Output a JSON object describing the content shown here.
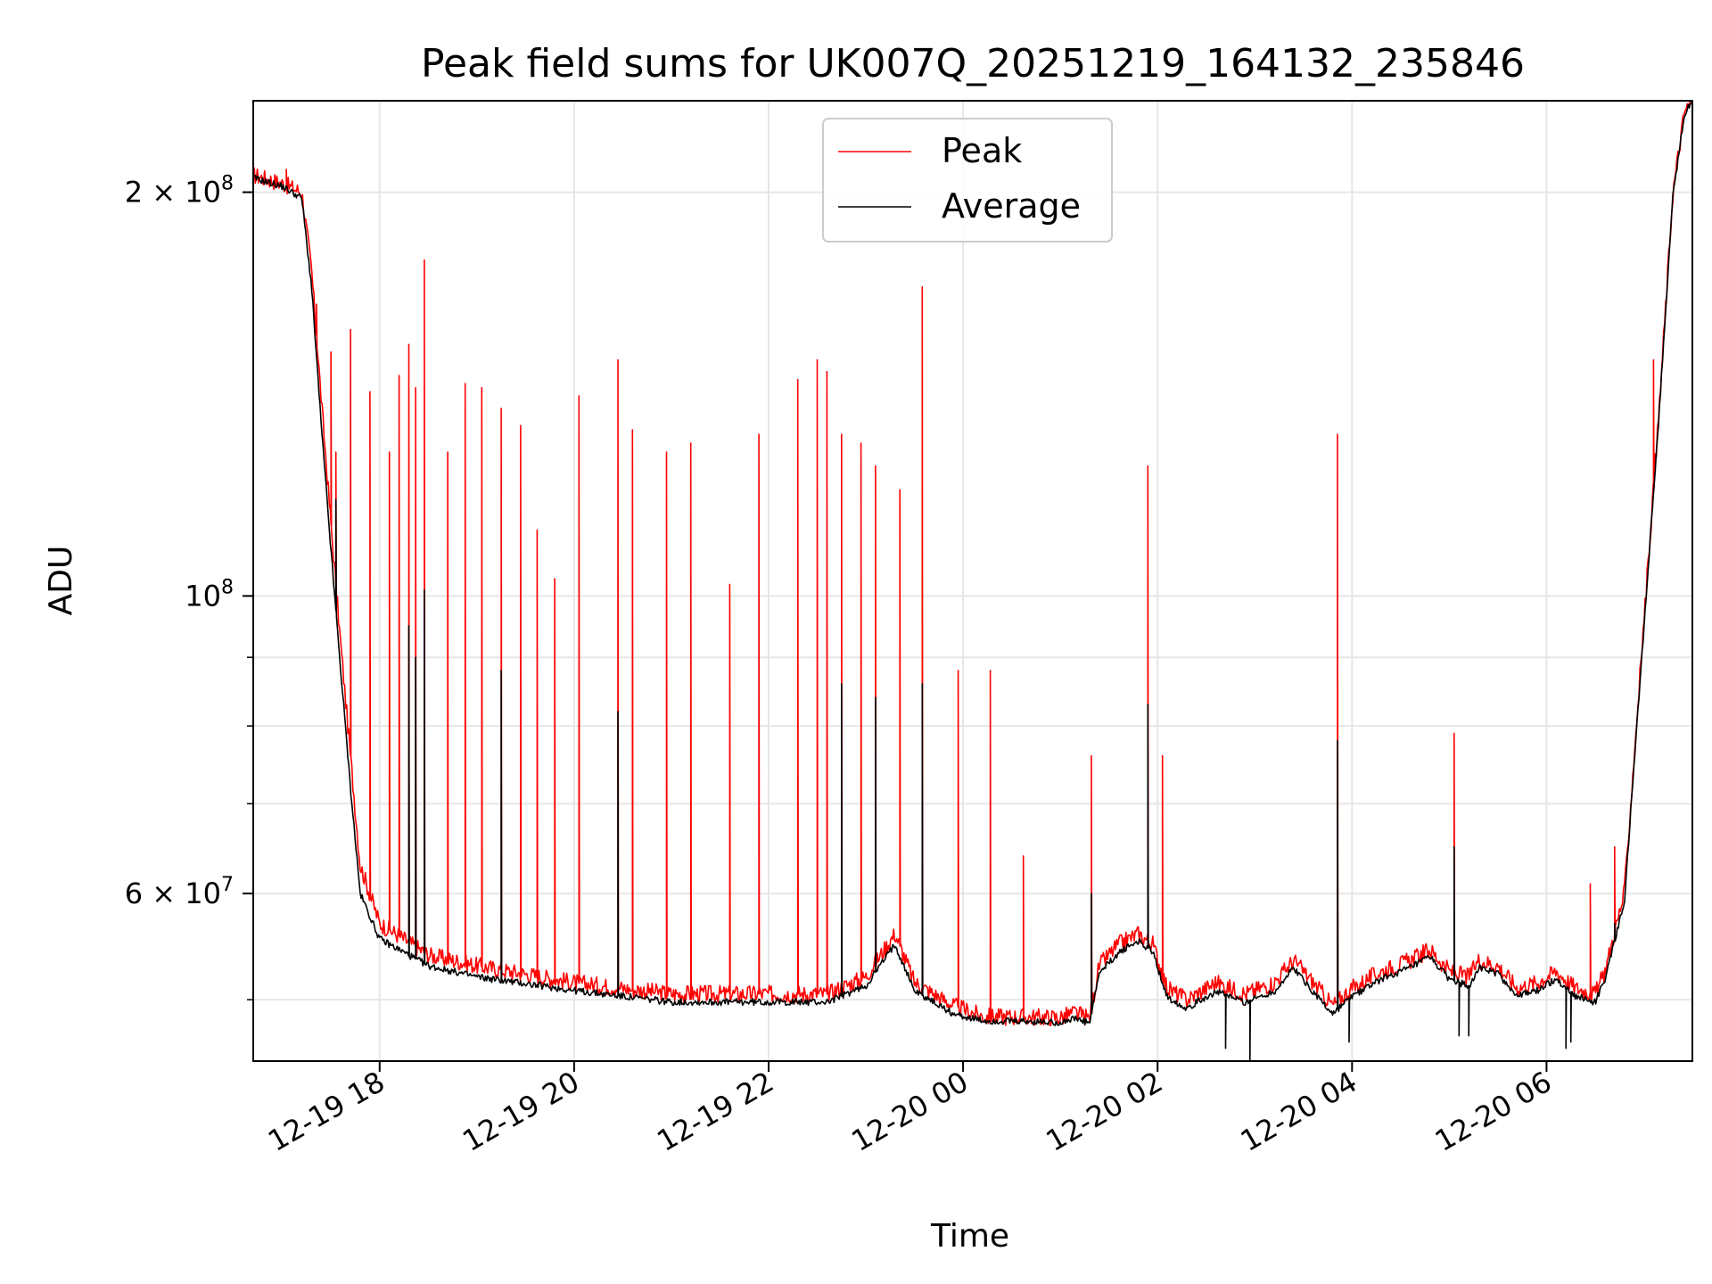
{
  "chart_data": {
    "type": "line",
    "title": "Peak field sums for UK007Q_20251219_164132_235846",
    "xlabel": "Time",
    "ylabel": "ADU",
    "yscale": "log",
    "xlim_hours": [
      16.7,
      31.5
    ],
    "ylim": [
      45000000,
      234000000
    ],
    "grid": true,
    "legend": {
      "placement": "top-center",
      "entries": [
        "Peak",
        "Average"
      ]
    },
    "x_ticks": [
      {
        "hour": 18,
        "label": "12-19 18"
      },
      {
        "hour": 20,
        "label": "12-19 20"
      },
      {
        "hour": 22,
        "label": "12-19 22"
      },
      {
        "hour": 24,
        "label": "12-20 00"
      },
      {
        "hour": 26,
        "label": "12-20 02"
      },
      {
        "hour": 28,
        "label": "12-20 04"
      },
      {
        "hour": 30,
        "label": "12-20 06"
      }
    ],
    "y_major_ticks": [
      {
        "value": 200000000,
        "mant": "2",
        "base": "× 10",
        "exp": "8"
      },
      {
        "value": 100000000,
        "mant": "",
        "base": "10",
        "exp": "8"
      },
      {
        "value": 60000000,
        "mant": "6",
        "base": "× 10",
        "exp": "7"
      }
    ],
    "y_minor_ticks": [
      50000000,
      70000000,
      80000000,
      90000000
    ],
    "series": [
      {
        "name": "Peak",
        "color": "#ff0000",
        "baseline": [
          [
            16.7,
            206000000
          ],
          [
            17.0,
            203000000
          ],
          [
            17.2,
            200000000
          ],
          [
            17.3,
            175000000
          ],
          [
            17.4,
            140000000
          ],
          [
            17.5,
            113000000
          ],
          [
            17.6,
            92000000
          ],
          [
            17.7,
            76000000
          ],
          [
            17.8,
            63000000
          ],
          [
            18.0,
            57000000
          ],
          [
            18.5,
            54000000
          ],
          [
            19.0,
            53000000
          ],
          [
            20.0,
            51500000
          ],
          [
            21.0,
            50500000
          ],
          [
            22.0,
            50500000
          ],
          [
            22.6,
            50500000
          ],
          [
            23.0,
            52000000
          ],
          [
            23.3,
            56000000
          ],
          [
            23.5,
            51500000
          ],
          [
            23.9,
            49500000
          ],
          [
            24.2,
            48600000
          ],
          [
            25.0,
            48500000
          ],
          [
            25.15,
            48900000
          ],
          [
            25.3,
            48400000
          ],
          [
            25.4,
            53000000
          ],
          [
            25.6,
            55000000
          ],
          [
            25.8,
            56000000
          ],
          [
            25.95,
            55000000
          ],
          [
            26.1,
            51000000
          ],
          [
            26.3,
            50000000
          ],
          [
            26.6,
            51500000
          ],
          [
            26.9,
            50500000
          ],
          [
            27.2,
            51500000
          ],
          [
            27.4,
            53500000
          ],
          [
            27.6,
            51500000
          ],
          [
            27.8,
            49500000
          ],
          [
            28.0,
            51000000
          ],
          [
            28.3,
            52500000
          ],
          [
            28.6,
            53500000
          ],
          [
            28.8,
            54500000
          ],
          [
            29.0,
            52500000
          ],
          [
            29.2,
            52000000
          ],
          [
            29.3,
            53500000
          ],
          [
            29.5,
            53000000
          ],
          [
            29.7,
            51000000
          ],
          [
            29.9,
            51500000
          ],
          [
            30.1,
            52500000
          ],
          [
            30.3,
            51000000
          ],
          [
            30.5,
            50500000
          ],
          [
            30.6,
            52500000
          ],
          [
            30.8,
            60000000
          ],
          [
            30.95,
            85000000
          ],
          [
            31.15,
            135000000
          ],
          [
            31.3,
            200000000
          ],
          [
            31.42,
            230000000
          ],
          [
            31.5,
            234000000
          ]
        ],
        "spikes": [
          [
            17.04,
            208000000
          ],
          [
            17.35,
            165000000
          ],
          [
            17.5,
            152000000
          ],
          [
            17.55,
            128000000
          ],
          [
            17.7,
            158000000
          ],
          [
            17.9,
            142000000
          ],
          [
            18.1,
            128000000
          ],
          [
            18.2,
            146000000
          ],
          [
            18.3,
            154000000
          ],
          [
            18.37,
            143000000
          ],
          [
            18.46,
            178000000
          ],
          [
            18.7,
            128000000
          ],
          [
            18.88,
            144000000
          ],
          [
            19.05,
            143000000
          ],
          [
            19.25,
            138000000
          ],
          [
            19.45,
            134000000
          ],
          [
            19.62,
            112000000
          ],
          [
            19.8,
            103000000
          ],
          [
            20.05,
            141000000
          ],
          [
            20.45,
            150000000
          ],
          [
            20.6,
            133000000
          ],
          [
            20.95,
            128000000
          ],
          [
            21.2,
            130000000
          ],
          [
            21.6,
            102000000
          ],
          [
            21.9,
            132000000
          ],
          [
            22.3,
            145000000
          ],
          [
            22.5,
            150000000
          ],
          [
            22.6,
            147000000
          ],
          [
            22.75,
            132000000
          ],
          [
            22.95,
            130000000
          ],
          [
            23.1,
            125000000
          ],
          [
            23.35,
            120000000
          ],
          [
            23.58,
            170000000
          ],
          [
            23.95,
            88000000
          ],
          [
            24.28,
            88000000
          ],
          [
            24.62,
            64000000
          ],
          [
            25.32,
            76000000
          ],
          [
            25.9,
            125000000
          ],
          [
            26.05,
            76000000
          ],
          [
            27.85,
            132000000
          ],
          [
            29.05,
            79000000
          ],
          [
            30.45,
            61000000
          ],
          [
            30.7,
            65000000
          ],
          [
            31.1,
            150000000
          ]
        ]
      },
      {
        "name": "Average",
        "color": "#000000",
        "baseline": [
          [
            16.7,
            205000000
          ],
          [
            17.0,
            202000000
          ],
          [
            17.2,
            198000000
          ],
          [
            17.3,
            170000000
          ],
          [
            17.4,
            134000000
          ],
          [
            17.5,
            108000000
          ],
          [
            17.6,
            88000000
          ],
          [
            17.7,
            72000000
          ],
          [
            17.8,
            60000000
          ],
          [
            18.0,
            55500000
          ],
          [
            18.5,
            53000000
          ],
          [
            19.0,
            52000000
          ],
          [
            20.0,
            50800000
          ],
          [
            21.0,
            49800000
          ],
          [
            22.0,
            49800000
          ],
          [
            22.6,
            49800000
          ],
          [
            23.0,
            51200000
          ],
          [
            23.3,
            55000000
          ],
          [
            23.5,
            50800000
          ],
          [
            23.9,
            48800000
          ],
          [
            24.2,
            48200000
          ],
          [
            25.0,
            48100000
          ],
          [
            25.15,
            48400000
          ],
          [
            25.3,
            48000000
          ],
          [
            25.4,
            52300000
          ],
          [
            25.6,
            54200000
          ],
          [
            25.8,
            55300000
          ],
          [
            25.95,
            54300000
          ],
          [
            26.1,
            50200000
          ],
          [
            26.3,
            49300000
          ],
          [
            26.6,
            50700000
          ],
          [
            26.9,
            49800000
          ],
          [
            27.2,
            50700000
          ],
          [
            27.4,
            52800000
          ],
          [
            27.6,
            50700000
          ],
          [
            27.8,
            48800000
          ],
          [
            28.0,
            50300000
          ],
          [
            28.3,
            51800000
          ],
          [
            28.6,
            52800000
          ],
          [
            28.8,
            53800000
          ],
          [
            29.0,
            51800000
          ],
          [
            29.2,
            51200000
          ],
          [
            29.3,
            52800000
          ],
          [
            29.5,
            52300000
          ],
          [
            29.7,
            50300000
          ],
          [
            29.9,
            50800000
          ],
          [
            30.1,
            51800000
          ],
          [
            30.3,
            50300000
          ],
          [
            30.5,
            49800000
          ],
          [
            30.6,
            51800000
          ],
          [
            30.8,
            59000000
          ],
          [
            30.95,
            84000000
          ],
          [
            31.15,
            134000000
          ],
          [
            31.3,
            199000000
          ],
          [
            31.42,
            229000000
          ],
          [
            31.5,
            234000000
          ]
        ],
        "spikes": [
          [
            17.55,
            118000000
          ],
          [
            18.3,
            95000000
          ],
          [
            18.37,
            90000000
          ],
          [
            18.46,
            101000000
          ],
          [
            19.25,
            88000000
          ],
          [
            20.45,
            82000000
          ],
          [
            22.75,
            86000000
          ],
          [
            23.1,
            84000000
          ],
          [
            23.58,
            86000000
          ],
          [
            25.32,
            60000000
          ],
          [
            25.9,
            83000000
          ],
          [
            27.85,
            78000000
          ],
          [
            29.05,
            65000000
          ],
          [
            30.7,
            57000000
          ]
        ],
        "dips": [
          [
            26.7,
            46000000
          ],
          [
            26.95,
            45000000
          ],
          [
            27.97,
            46500000
          ],
          [
            29.1,
            47000000
          ],
          [
            29.2,
            47000000
          ],
          [
            30.2,
            46000000
          ],
          [
            30.25,
            46500000
          ]
        ]
      }
    ]
  }
}
